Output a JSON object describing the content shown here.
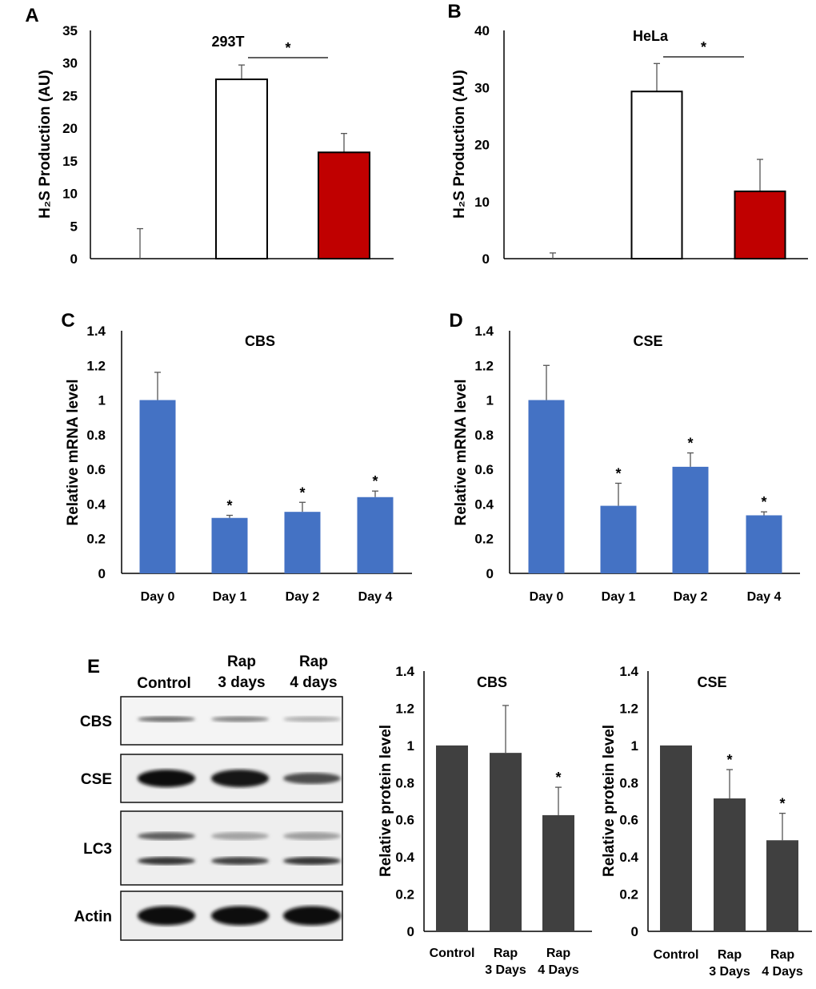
{
  "chart_data": [
    {
      "id": "A",
      "type": "bar",
      "panel_letter": "A",
      "title": "293T",
      "ylabel": "H₂S Production (AU)",
      "ylim": [
        0,
        35
      ],
      "yticks": [
        "0",
        "5",
        "10",
        "15",
        "20",
        "25",
        "30",
        "35"
      ],
      "ytick_values": [
        0,
        5,
        10,
        15,
        20,
        25,
        30,
        35
      ],
      "categories": [
        "",
        "",
        ""
      ],
      "values": [
        0,
        27.5,
        16.3
      ],
      "errors": [
        4.6,
        2.2,
        2.9
      ],
      "colors": [
        "#ffffff",
        "#ffffff",
        "#c00000"
      ],
      "significance": [
        {
          "from": 1,
          "to": 2,
          "label": "*"
        }
      ]
    },
    {
      "id": "B",
      "type": "bar",
      "panel_letter": "B",
      "title": "HeLa",
      "ylabel": "H₂S Production (AU)",
      "ylim": [
        0,
        40
      ],
      "yticks": [
        "0",
        "10",
        "20",
        "30",
        "40"
      ],
      "ytick_values": [
        0,
        10,
        20,
        30,
        40
      ],
      "categories": [
        "",
        "",
        ""
      ],
      "values": [
        0,
        29.3,
        11.8
      ],
      "errors": [
        1.0,
        4.9,
        5.6
      ],
      "colors": [
        "#ffffff",
        "#ffffff",
        "#c00000"
      ],
      "significance": [
        {
          "from": 1,
          "to": 2,
          "label": "*"
        }
      ]
    },
    {
      "id": "C",
      "type": "bar",
      "panel_letter": "C",
      "title": "CBS",
      "ylabel": "Relative mRNA level",
      "ylim": [
        0,
        1.4
      ],
      "yticks": [
        "0",
        "0.2",
        "0.4",
        "0.6",
        "0.8",
        "1",
        "1.2",
        "1.4"
      ],
      "ytick_values": [
        0,
        0.2,
        0.4,
        0.6,
        0.8,
        1,
        1.2,
        1.4
      ],
      "categories": [
        "Day 0",
        "Day 1",
        "Day 2",
        "Day 4"
      ],
      "values": [
        1.0,
        0.32,
        0.355,
        0.44
      ],
      "errors": [
        0.16,
        0.015,
        0.055,
        0.035
      ],
      "colors": [
        "#4472c4",
        "#4472c4",
        "#4472c4",
        "#4472c4"
      ],
      "stars": [
        "",
        "*",
        "*",
        "*"
      ]
    },
    {
      "id": "D",
      "type": "bar",
      "panel_letter": "D",
      "title": "CSE",
      "ylabel": "Relative mRNA level",
      "ylim": [
        0,
        1.4
      ],
      "yticks": [
        "0",
        "0.2",
        "0.4",
        "0.6",
        "0.8",
        "1",
        "1.2",
        "1.4"
      ],
      "ytick_values": [
        0,
        0.2,
        0.4,
        0.6,
        0.8,
        1,
        1.2,
        1.4
      ],
      "categories": [
        "Day 0",
        "Day 1",
        "Day 2",
        "Day 4"
      ],
      "values": [
        1.0,
        0.39,
        0.615,
        0.335
      ],
      "errors": [
        0.2,
        0.13,
        0.08,
        0.02
      ],
      "colors": [
        "#4472c4",
        "#4472c4",
        "#4472c4",
        "#4472c4"
      ],
      "stars": [
        "",
        "*",
        "*",
        "*"
      ]
    },
    {
      "id": "E1",
      "type": "bar",
      "title": "CBS",
      "ylabel": "Relative protein level",
      "ylim": [
        0,
        1.4
      ],
      "yticks": [
        "0",
        "0.2",
        "0.4",
        "0.6",
        "0.8",
        "1",
        "1.2",
        "1.4"
      ],
      "ytick_values": [
        0,
        0.2,
        0.4,
        0.6,
        0.8,
        1,
        1.2,
        1.4
      ],
      "categories": [
        [
          "Control"
        ],
        [
          "Rap",
          "3 Days"
        ],
        [
          "Rap",
          "4 Days"
        ]
      ],
      "values": [
        1.0,
        0.96,
        0.625
      ],
      "errors": [
        0.0,
        0.255,
        0.15
      ],
      "colors": [
        "#404040",
        "#404040",
        "#404040"
      ],
      "stars": [
        "",
        "",
        "*"
      ]
    },
    {
      "id": "E2",
      "type": "bar",
      "title": "CSE",
      "ylabel": "Relative protein level",
      "ylim": [
        0,
        1.4
      ],
      "yticks": [
        "0",
        "0.2",
        "0.4",
        "0.6",
        "0.8",
        "1",
        "1.2",
        "1.4"
      ],
      "ytick_values": [
        0,
        0.2,
        0.4,
        0.6,
        0.8,
        1,
        1.2,
        1.4
      ],
      "categories": [
        [
          "Control"
        ],
        [
          "Rap",
          "3 Days"
        ],
        [
          "Rap",
          "4 Days"
        ]
      ],
      "values": [
        1.0,
        0.715,
        0.49
      ],
      "errors": [
        0.0,
        0.155,
        0.145
      ],
      "colors": [
        "#404040",
        "#404040",
        "#404040"
      ],
      "stars": [
        "",
        "*",
        "*"
      ]
    }
  ],
  "western_blot": {
    "panel_letter": "E",
    "lanes": [
      [
        "Control"
      ],
      [
        "Rap",
        "3 days"
      ],
      [
        "Rap",
        "4 days"
      ]
    ],
    "rows": [
      {
        "label": "CBS",
        "intensity": [
          0.55,
          0.45,
          0.25
        ]
      },
      {
        "label": "CSE",
        "intensity": [
          1.0,
          0.95,
          0.7
        ]
      },
      {
        "label": "LC3",
        "intensity": [
          0.8,
          0.75,
          0.8
        ]
      },
      {
        "label": "Actin",
        "intensity": [
          1.0,
          1.0,
          1.0
        ]
      }
    ]
  }
}
